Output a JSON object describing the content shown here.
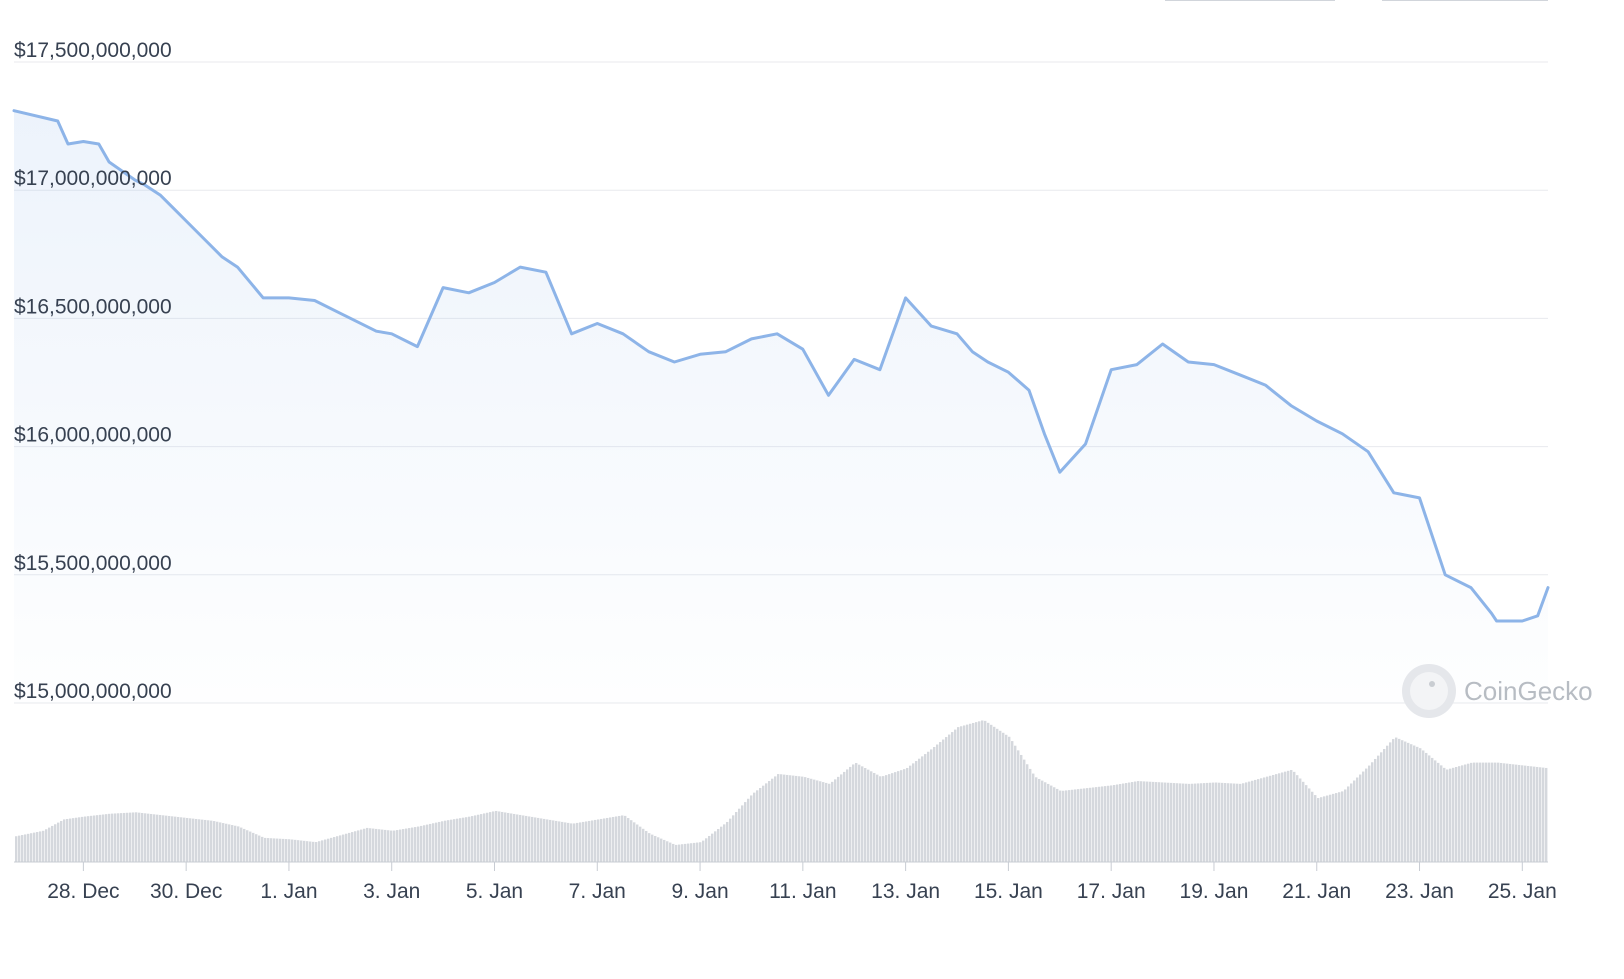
{
  "chart_data": {
    "type": "line",
    "y_axis_labels": [
      "$15,000,000,000",
      "$15,500,000,000",
      "$16,000,000,000",
      "$16,500,000,000",
      "$17,000,000,000",
      "$17,500,000,000"
    ],
    "ylim": [
      15000000000,
      17500000000
    ],
    "x_tick_labels": [
      "28. Dec",
      "30. Dec",
      "1. Jan",
      "3. Jan",
      "5. Jan",
      "7. Jan",
      "9. Jan",
      "11. Jan",
      "13. Jan",
      "15. Jan",
      "17. Jan",
      "19. Jan",
      "21. Jan",
      "23. Jan",
      "25. Jan"
    ],
    "x_range_days": [
      -1.35,
      28.5
    ],
    "grid": "horizontal",
    "series": [
      {
        "kind": "price",
        "color": "#8db4e8",
        "x_days": [
          -1.35,
          -0.5,
          -0.3,
          0.0,
          0.3,
          0.5,
          1.0,
          1.2,
          1.5,
          1.8,
          2.0,
          2.4,
          2.7,
          3.0,
          3.5,
          4.0,
          4.5,
          5.0,
          5.7,
          6.0,
          6.5,
          7.0,
          7.5,
          8.0,
          8.5,
          9.0,
          9.5,
          10.0,
          10.5,
          11.0,
          11.5,
          12.0,
          12.5,
          13.0,
          13.5,
          14.0,
          14.5,
          15.0,
          15.5,
          16.0,
          16.5,
          17.0,
          17.3,
          17.6,
          18.0,
          18.4,
          18.7,
          19.0,
          19.5,
          20.0,
          20.5,
          21.0,
          21.5,
          22.0,
          22.5,
          23.0,
          23.5,
          24.0,
          24.5,
          25.0,
          25.5,
          26.0,
          26.5,
          27.0,
          27.4,
          27.5,
          28.0,
          28.3,
          28.5
        ],
        "values": [
          17310000000,
          17270000000,
          17180000000,
          17190000000,
          17180000000,
          17110000000,
          17040000000,
          17020000000,
          16980000000,
          16920000000,
          16880000000,
          16800000000,
          16740000000,
          16700000000,
          16580000000,
          16580000000,
          16570000000,
          16520000000,
          16450000000,
          16440000000,
          16390000000,
          16620000000,
          16600000000,
          16640000000,
          16700000000,
          16680000000,
          16440000000,
          16480000000,
          16440000000,
          16370000000,
          16330000000,
          16360000000,
          16370000000,
          16420000000,
          16440000000,
          16380000000,
          16200000000,
          16340000000,
          16300000000,
          16580000000,
          16470000000,
          16440000000,
          16370000000,
          16330000000,
          16290000000,
          16220000000,
          16050000000,
          15900000000,
          16010000000,
          16300000000,
          16320000000,
          16400000000,
          16330000000,
          16320000000,
          16280000000,
          16240000000,
          16160000000,
          16100000000,
          16050000000,
          15980000000,
          15820000000,
          15800000000,
          15500000000,
          15450000000,
          15350000000,
          15320000000,
          15320000000,
          15340000000,
          15450000000
        ]
      },
      {
        "kind": "volume",
        "color": "#9ca3af",
        "x_days": [
          -1.35,
          -0.8,
          -0.4,
          0.0,
          0.5,
          1.0,
          1.5,
          2.0,
          2.5,
          3.0,
          3.5,
          4.0,
          4.5,
          5.0,
          5.5,
          6.0,
          6.5,
          7.0,
          7.5,
          8.0,
          8.5,
          9.0,
          9.5,
          10.0,
          10.5,
          11.0,
          11.5,
          12.0,
          12.5,
          13.0,
          13.5,
          14.0,
          14.5,
          15.0,
          15.5,
          16.0,
          16.5,
          17.0,
          17.5,
          18.0,
          18.5,
          19.0,
          19.5,
          20.0,
          20.5,
          21.0,
          21.5,
          22.0,
          22.5,
          23.0,
          23.5,
          24.0,
          24.5,
          25.0,
          25.5,
          26.0,
          26.5,
          27.0,
          27.5,
          28.0,
          28.5
        ],
        "values": [
          0.18,
          0.22,
          0.3,
          0.32,
          0.34,
          0.35,
          0.33,
          0.31,
          0.29,
          0.25,
          0.17,
          0.16,
          0.14,
          0.19,
          0.24,
          0.22,
          0.25,
          0.29,
          0.32,
          0.36,
          0.33,
          0.3,
          0.27,
          0.3,
          0.33,
          0.2,
          0.12,
          0.14,
          0.28,
          0.48,
          0.62,
          0.6,
          0.55,
          0.7,
          0.6,
          0.66,
          0.8,
          0.95,
          1.0,
          0.88,
          0.6,
          0.5,
          0.52,
          0.54,
          0.57,
          0.56,
          0.55,
          0.56,
          0.55,
          0.6,
          0.65,
          0.45,
          0.5,
          0.68,
          0.88,
          0.8,
          0.65,
          0.7,
          0.7,
          0.68,
          0.66
        ]
      }
    ]
  },
  "watermark": {
    "text": "CoinGecko"
  }
}
